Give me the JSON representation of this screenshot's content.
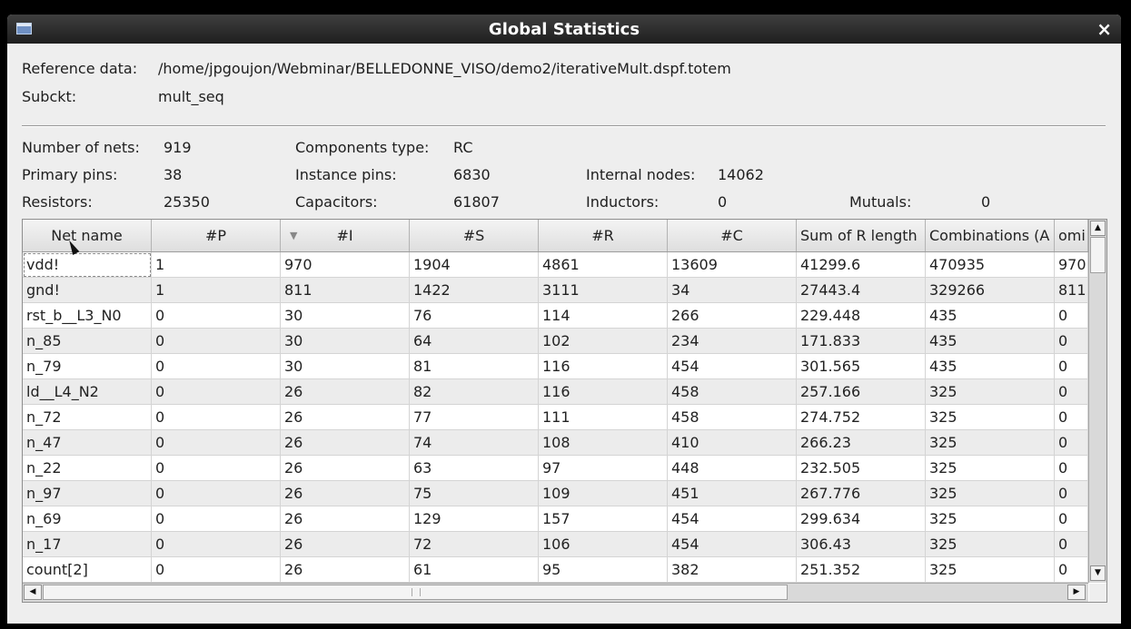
{
  "window": {
    "title": "Global Statistics",
    "close_glyph": "×"
  },
  "reference": {
    "ref_label": "Reference data:",
    "ref_value": "/home/jpgoujon/Webminar/BELLEDONNE_VISO/demo2/iterativeMult.dspf.totem",
    "subckt_label": "Subckt:",
    "subckt_value": "mult_seq"
  },
  "stats": {
    "nets_label": "Number of nets:",
    "nets_value": "919",
    "comp_label": "Components type:",
    "comp_value": "RC",
    "pins_label": "Primary pins:",
    "pins_value": "38",
    "inst_label": "Instance pins:",
    "inst_value": "6830",
    "nodes_label": "Internal nodes:",
    "nodes_value": "14062",
    "res_label": "Resistors:",
    "res_value": "25350",
    "cap_label": "Capacitors:",
    "cap_value": "61807",
    "ind_label": "Inductors:",
    "ind_value": "0",
    "mut_label": "Mutuals:",
    "mut_value": "0"
  },
  "table": {
    "headers": [
      "Net name",
      "#P",
      "#I",
      "#S",
      "#R",
      "#C",
      "Sum of R length",
      "Combinations (A",
      "omi"
    ],
    "sorted_column": "#I",
    "rows": [
      [
        "vdd!",
        "1",
        "970",
        "1904",
        "4861",
        "13609",
        "41299.6",
        "470935",
        "970"
      ],
      [
        "gnd!",
        "1",
        "811",
        "1422",
        "3111",
        "34",
        "27443.4",
        "329266",
        "811"
      ],
      [
        "rst_b__L3_N0",
        "0",
        "30",
        "76",
        "114",
        "266",
        "229.448",
        "435",
        "0"
      ],
      [
        "n_85",
        "0",
        "30",
        "64",
        "102",
        "234",
        "171.833",
        "435",
        "0"
      ],
      [
        "n_79",
        "0",
        "30",
        "81",
        "116",
        "454",
        "301.565",
        "435",
        "0"
      ],
      [
        "ld__L4_N2",
        "0",
        "26",
        "82",
        "116",
        "458",
        "257.166",
        "325",
        "0"
      ],
      [
        "n_72",
        "0",
        "26",
        "77",
        "111",
        "458",
        "274.752",
        "325",
        "0"
      ],
      [
        "n_47",
        "0",
        "26",
        "74",
        "108",
        "410",
        "266.23",
        "325",
        "0"
      ],
      [
        "n_22",
        "0",
        "26",
        "63",
        "97",
        "448",
        "232.505",
        "325",
        "0"
      ],
      [
        "n_97",
        "0",
        "26",
        "75",
        "109",
        "451",
        "267.776",
        "325",
        "0"
      ],
      [
        "n_69",
        "0",
        "26",
        "129",
        "157",
        "454",
        "299.634",
        "325",
        "0"
      ],
      [
        "n_17",
        "0",
        "26",
        "72",
        "106",
        "454",
        "306.43",
        "325",
        "0"
      ],
      [
        "count[2]",
        "0",
        "26",
        "61",
        "95",
        "382",
        "251.352",
        "325",
        "0"
      ]
    ]
  },
  "scrollbars": {
    "up_arrow": "▲",
    "down_arrow": "▼",
    "left_arrow": "◀",
    "right_arrow": "▶"
  }
}
